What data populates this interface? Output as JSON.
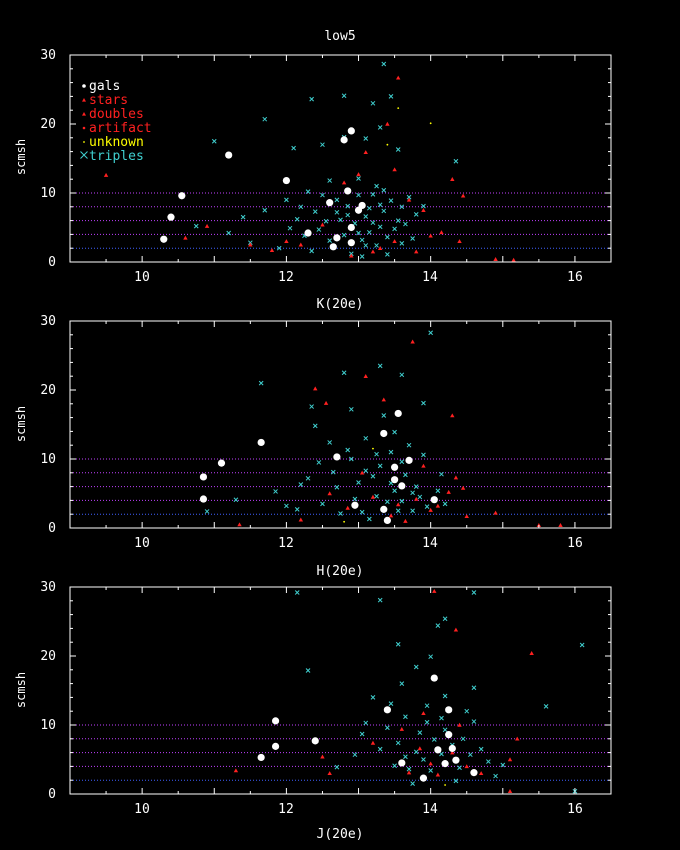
{
  "colors": {
    "background": "#000000",
    "axes": "#ffffff",
    "gals": "#ffffff",
    "stars": "#ff2020",
    "doubles": "#ff2020",
    "artifact": "#ff2020",
    "unknown": "#ffff00",
    "triples": "#40d0d0",
    "ref_magenta": "#c040ff",
    "ref_blue": "#4060ff"
  },
  "legend": {
    "placement": "top-left",
    "entries": [
      {
        "label": "gals",
        "marker": "filled-circle",
        "color": "#ffffff"
      },
      {
        "label": "stars",
        "marker": "triangle",
        "color": "#ff2020"
      },
      {
        "label": "doubles",
        "marker": "triangle",
        "color": "#ff2020"
      },
      {
        "label": "artifact",
        "marker": "star",
        "color": "#ff2020"
      },
      {
        "label": "unknown",
        "marker": "dot",
        "color": "#ffff00"
      },
      {
        "label": "triples",
        "marker": "cross",
        "color": "#40d0d0"
      }
    ]
  },
  "xlabel": "J(20e)",
  "chart_data": [
    {
      "type": "scatter",
      "title": "low5",
      "ylabel": "scmsh",
      "xlim": [
        9,
        16.5
      ],
      "ylim": [
        0,
        30
      ],
      "xticks": [
        "10",
        "12",
        "14",
        "16"
      ],
      "yticks": [
        "0",
        "10",
        "20",
        "30"
      ],
      "ref_lines": [
        2,
        4,
        6,
        8,
        10
      ],
      "gals": [
        [
          10.3,
          3.3
        ],
        [
          10.4,
          6.5
        ],
        [
          10.55,
          9.6
        ],
        [
          11.2,
          15.5
        ],
        [
          12.0,
          11.8
        ],
        [
          12.3,
          4.2
        ],
        [
          12.6,
          8.6
        ],
        [
          12.7,
          3.5
        ],
        [
          12.65,
          2.2
        ],
        [
          12.8,
          17.7
        ],
        [
          12.85,
          10.3
        ],
        [
          12.9,
          19
        ],
        [
          12.9,
          5.0
        ],
        [
          12.9,
          2.8
        ],
        [
          13.0,
          7.5
        ],
        [
          13.05,
          8.2
        ]
      ],
      "stars": [
        [
          9.5,
          12.6
        ],
        [
          10.6,
          3.5
        ],
        [
          10.9,
          5.2
        ],
        [
          11.5,
          2.5
        ],
        [
          12.0,
          3.0
        ],
        [
          12.5,
          5.4
        ],
        [
          12.8,
          11.5
        ],
        [
          13.0,
          12.7
        ],
        [
          13.1,
          15.9
        ],
        [
          13.4,
          20.0
        ],
        [
          13.55,
          26.7
        ],
        [
          13.5,
          13.4
        ],
        [
          13.7,
          9.0
        ],
        [
          13.9,
          7.5
        ],
        [
          14.0,
          3.8
        ],
        [
          14.15,
          4.3
        ],
        [
          14.3,
          12.0
        ],
        [
          14.45,
          9.6
        ],
        [
          14.4,
          3.0
        ],
        [
          13.3,
          2.0
        ],
        [
          12.9,
          0.9
        ],
        [
          13.2,
          1.5
        ],
        [
          14.9,
          0.4
        ],
        [
          15.15,
          0.3
        ],
        [
          11.8,
          1.7
        ],
        [
          12.2,
          2.5
        ],
        [
          13.5,
          3.0
        ],
        [
          13.8,
          1.5
        ]
      ],
      "unknown": [
        [
          13.55,
          22.3
        ],
        [
          14.0,
          20.1
        ],
        [
          13.4,
          17.0
        ]
      ],
      "triples": [
        [
          13.35,
          28.7
        ],
        [
          12.35,
          23.6
        ],
        [
          12.8,
          24.1
        ],
        [
          13.2,
          23.0
        ],
        [
          13.45,
          24.0
        ],
        [
          11.7,
          20.7
        ],
        [
          12.1,
          16.5
        ],
        [
          12.5,
          17.0
        ],
        [
          12.8,
          18.1
        ],
        [
          13.1,
          17.9
        ],
        [
          13.3,
          19.5
        ],
        [
          13.55,
          16.3
        ],
        [
          11.0,
          17.5
        ],
        [
          11.4,
          6.5
        ],
        [
          11.7,
          7.5
        ],
        [
          12.0,
          9.0
        ],
        [
          12.2,
          8.0
        ],
        [
          12.3,
          10.2
        ],
        [
          12.4,
          7.3
        ],
        [
          12.45,
          4.7
        ],
        [
          12.55,
          5.9
        ],
        [
          12.6,
          3.1
        ],
        [
          12.7,
          9.0
        ],
        [
          12.75,
          6.1
        ],
        [
          12.8,
          3.9
        ],
        [
          12.85,
          8.1
        ],
        [
          12.95,
          5.6
        ],
        [
          13.0,
          9.7
        ],
        [
          13.05,
          3.2
        ],
        [
          13.1,
          6.6
        ],
        [
          13.15,
          4.3
        ],
        [
          13.2,
          9.8
        ],
        [
          13.25,
          2.4
        ],
        [
          13.3,
          5.1
        ],
        [
          13.35,
          7.4
        ],
        [
          13.4,
          3.6
        ],
        [
          13.45,
          8.9
        ],
        [
          13.5,
          4.8
        ],
        [
          13.55,
          6.0
        ],
        [
          13.6,
          2.7
        ],
        [
          13.65,
          5.5
        ],
        [
          13.7,
          9.4
        ],
        [
          13.75,
          3.4
        ],
        [
          13.8,
          6.9
        ],
        [
          13.9,
          8.1
        ],
        [
          12.25,
          3.8
        ],
        [
          12.15,
          6.2
        ],
        [
          12.6,
          11.8
        ],
        [
          13.0,
          12.1
        ],
        [
          13.25,
          11.0
        ],
        [
          11.9,
          2.0
        ],
        [
          12.35,
          1.6
        ],
        [
          12.9,
          1.2
        ],
        [
          13.05,
          0.8
        ],
        [
          13.4,
          1.1
        ],
        [
          14.35,
          14.6
        ],
        [
          11.2,
          4.2
        ],
        [
          10.75,
          5.2
        ],
        [
          11.5,
          2.8
        ],
        [
          12.05,
          4.9
        ],
        [
          13.15,
          7.8
        ],
        [
          12.7,
          7.2
        ],
        [
          13.2,
          5.7
        ],
        [
          13.3,
          8.3
        ],
        [
          13.0,
          4.2
        ],
        [
          12.85,
          6.8
        ],
        [
          13.1,
          2.4
        ],
        [
          12.5,
          9.7
        ],
        [
          13.35,
          10.4
        ],
        [
          13.6,
          8.0
        ]
      ]
    },
    {
      "type": "scatter",
      "title": "K(20e)",
      "ylabel": "scmsh",
      "xlim": [
        9,
        16.5
      ],
      "ylim": [
        0,
        30
      ],
      "xticks": [
        "10",
        "12",
        "14",
        "16"
      ],
      "yticks": [
        "0",
        "10",
        "20",
        "30"
      ],
      "ref_lines": [
        2,
        4,
        6,
        8,
        10
      ],
      "gals": [
        [
          10.85,
          4.2
        ],
        [
          10.85,
          7.4
        ],
        [
          11.1,
          9.4
        ],
        [
          11.65,
          12.4
        ],
        [
          12.7,
          10.3
        ],
        [
          12.95,
          3.3
        ],
        [
          13.35,
          2.7
        ],
        [
          13.4,
          1.1
        ],
        [
          13.35,
          13.7
        ],
        [
          13.5,
          8.8
        ],
        [
          13.55,
          16.6
        ],
        [
          13.6,
          6.1
        ],
        [
          13.7,
          9.8
        ],
        [
          13.5,
          7.0
        ],
        [
          14.05,
          4.1
        ]
      ],
      "stars": [
        [
          11.35,
          0.5
        ],
        [
          12.4,
          20.2
        ],
        [
          12.55,
          18.1
        ],
        [
          13.1,
          22.0
        ],
        [
          13.35,
          18.6
        ],
        [
          13.75,
          27.0
        ],
        [
          14.3,
          16.3
        ],
        [
          12.6,
          5.0
        ],
        [
          12.85,
          2.9
        ],
        [
          13.05,
          8.0
        ],
        [
          13.2,
          4.5
        ],
        [
          13.45,
          1.8
        ],
        [
          13.55,
          3.4
        ],
        [
          13.8,
          4.2
        ],
        [
          14.0,
          2.6
        ],
        [
          14.1,
          3.2
        ],
        [
          14.25,
          5.2
        ],
        [
          14.35,
          7.3
        ],
        [
          14.45,
          5.8
        ],
        [
          14.5,
          1.7
        ],
        [
          14.9,
          2.2
        ],
        [
          15.5,
          0.4
        ],
        [
          15.8,
          0.4
        ],
        [
          12.2,
          1.2
        ],
        [
          13.65,
          1.0
        ],
        [
          13.9,
          9.0
        ]
      ],
      "unknown": [
        [
          12.8,
          0.9
        ],
        [
          13.2,
          11.5
        ]
      ],
      "triples": [
        [
          14.0,
          28.3
        ],
        [
          13.3,
          23.5
        ],
        [
          12.8,
          22.5
        ],
        [
          13.6,
          22.2
        ],
        [
          11.65,
          21.0
        ],
        [
          12.35,
          17.6
        ],
        [
          12.6,
          12.4
        ],
        [
          12.9,
          10.0
        ],
        [
          13.0,
          6.6
        ],
        [
          13.1,
          13.0
        ],
        [
          13.2,
          7.5
        ],
        [
          13.25,
          4.6
        ],
        [
          13.3,
          9.0
        ],
        [
          13.45,
          11.0
        ],
        [
          13.5,
          5.4
        ],
        [
          13.6,
          3.9
        ],
        [
          13.65,
          7.7
        ],
        [
          13.7,
          12.0
        ],
        [
          13.75,
          2.5
        ],
        [
          13.8,
          6.0
        ],
        [
          13.85,
          4.5
        ],
        [
          13.9,
          10.6
        ],
        [
          13.95,
          3.1
        ],
        [
          12.3,
          7.2
        ],
        [
          12.5,
          3.5
        ],
        [
          12.7,
          5.9
        ],
        [
          12.75,
          2.1
        ],
        [
          12.45,
          9.5
        ],
        [
          12.2,
          6.3
        ],
        [
          12.0,
          3.2
        ],
        [
          11.85,
          5.3
        ],
        [
          11.3,
          4.1
        ],
        [
          10.9,
          2.4
        ],
        [
          12.15,
          2.7
        ],
        [
          13.05,
          2.3
        ],
        [
          13.15,
          1.3
        ],
        [
          13.4,
          3.8
        ],
        [
          13.55,
          2.5
        ],
        [
          14.1,
          5.4
        ],
        [
          14.2,
          3.5
        ],
        [
          14.15,
          7.8
        ],
        [
          12.4,
          14.8
        ],
        [
          12.9,
          17.2
        ],
        [
          13.35,
          16.3
        ],
        [
          13.9,
          18.1
        ],
        [
          13.1,
          8.3
        ],
        [
          12.85,
          11.3
        ],
        [
          12.65,
          8.1
        ],
        [
          13.45,
          6.5
        ],
        [
          13.25,
          10.7
        ],
        [
          12.95,
          4.2
        ],
        [
          13.6,
          9.6
        ],
        [
          13.75,
          5.1
        ],
        [
          13.5,
          13.9
        ]
      ]
    },
    {
      "type": "scatter",
      "title": "H(20e)",
      "ylabel": "scmsh",
      "xlim": [
        9,
        16.5
      ],
      "ylim": [
        0,
        30
      ],
      "xticks": [
        "10",
        "12",
        "14",
        "16"
      ],
      "yticks": [
        "0",
        "10",
        "20",
        "30"
      ],
      "ref_lines": [
        2,
        4,
        6,
        8,
        10
      ],
      "gals": [
        [
          11.65,
          5.3
        ],
        [
          11.85,
          10.6
        ],
        [
          11.85,
          6.9
        ],
        [
          12.4,
          7.7
        ],
        [
          13.4,
          12.2
        ],
        [
          13.6,
          4.5
        ],
        [
          13.9,
          2.3
        ],
        [
          14.05,
          16.8
        ],
        [
          14.1,
          6.4
        ],
        [
          14.2,
          4.4
        ],
        [
          14.25,
          8.6
        ],
        [
          14.25,
          12.2
        ],
        [
          14.3,
          6.6
        ],
        [
          14.35,
          4.9
        ],
        [
          14.6,
          3.1
        ]
      ],
      "stars": [
        [
          14.05,
          29.4
        ],
        [
          14.35,
          23.8
        ],
        [
          15.4,
          20.4
        ],
        [
          12.5,
          5.4
        ],
        [
          13.2,
          7.4
        ],
        [
          13.6,
          9.4
        ],
        [
          13.7,
          3.1
        ],
        [
          13.85,
          6.6
        ],
        [
          14.0,
          4.4
        ],
        [
          14.1,
          2.8
        ],
        [
          14.3,
          6.0
        ],
        [
          14.5,
          4.0
        ],
        [
          14.7,
          3.0
        ],
        [
          15.1,
          5.0
        ],
        [
          15.2,
          8.0
        ],
        [
          15.1,
          0.4
        ],
        [
          11.3,
          3.4
        ],
        [
          12.6,
          3.0
        ],
        [
          13.9,
          11.7
        ],
        [
          14.4,
          10.0
        ]
      ],
      "unknown": [
        [
          14.2,
          1.3
        ]
      ],
      "triples": [
        [
          12.15,
          29.2
        ],
        [
          14.6,
          29.2
        ],
        [
          16.1,
          21.6
        ],
        [
          13.3,
          28.1
        ],
        [
          13.55,
          21.7
        ],
        [
          14.1,
          24.4
        ],
        [
          14.2,
          25.4
        ],
        [
          15.6,
          12.7
        ],
        [
          12.3,
          17.9
        ],
        [
          13.1,
          10.3
        ],
        [
          13.3,
          6.5
        ],
        [
          13.4,
          9.6
        ],
        [
          13.5,
          4.1
        ],
        [
          13.55,
          7.4
        ],
        [
          13.65,
          11.2
        ],
        [
          13.7,
          3.6
        ],
        [
          13.8,
          6.1
        ],
        [
          13.85,
          8.9
        ],
        [
          13.9,
          5.0
        ],
        [
          13.95,
          10.4
        ],
        [
          14.0,
          3.4
        ],
        [
          14.05,
          7.9
        ],
        [
          14.15,
          5.8
        ],
        [
          14.2,
          9.3
        ],
        [
          14.3,
          7.1
        ],
        [
          14.4,
          3.8
        ],
        [
          14.45,
          8.0
        ],
        [
          14.55,
          5.7
        ],
        [
          14.6,
          10.5
        ],
        [
          14.7,
          6.5
        ],
        [
          14.8,
          4.7
        ],
        [
          14.9,
          2.6
        ],
        [
          15.0,
          4.2
        ],
        [
          13.6,
          16.0
        ],
        [
          13.8,
          18.4
        ],
        [
          14.0,
          19.9
        ],
        [
          14.2,
          14.2
        ],
        [
          14.6,
          15.4
        ],
        [
          13.2,
          14.0
        ],
        [
          12.7,
          3.9
        ],
        [
          12.95,
          5.7
        ],
        [
          13.05,
          8.7
        ],
        [
          13.75,
          1.5
        ],
        [
          14.35,
          1.9
        ],
        [
          16.0,
          0.4
        ],
        [
          13.45,
          13.1
        ],
        [
          14.15,
          11.0
        ],
        [
          13.95,
          12.8
        ],
        [
          14.5,
          12.0
        ],
        [
          13.65,
          5.4
        ]
      ]
    }
  ]
}
